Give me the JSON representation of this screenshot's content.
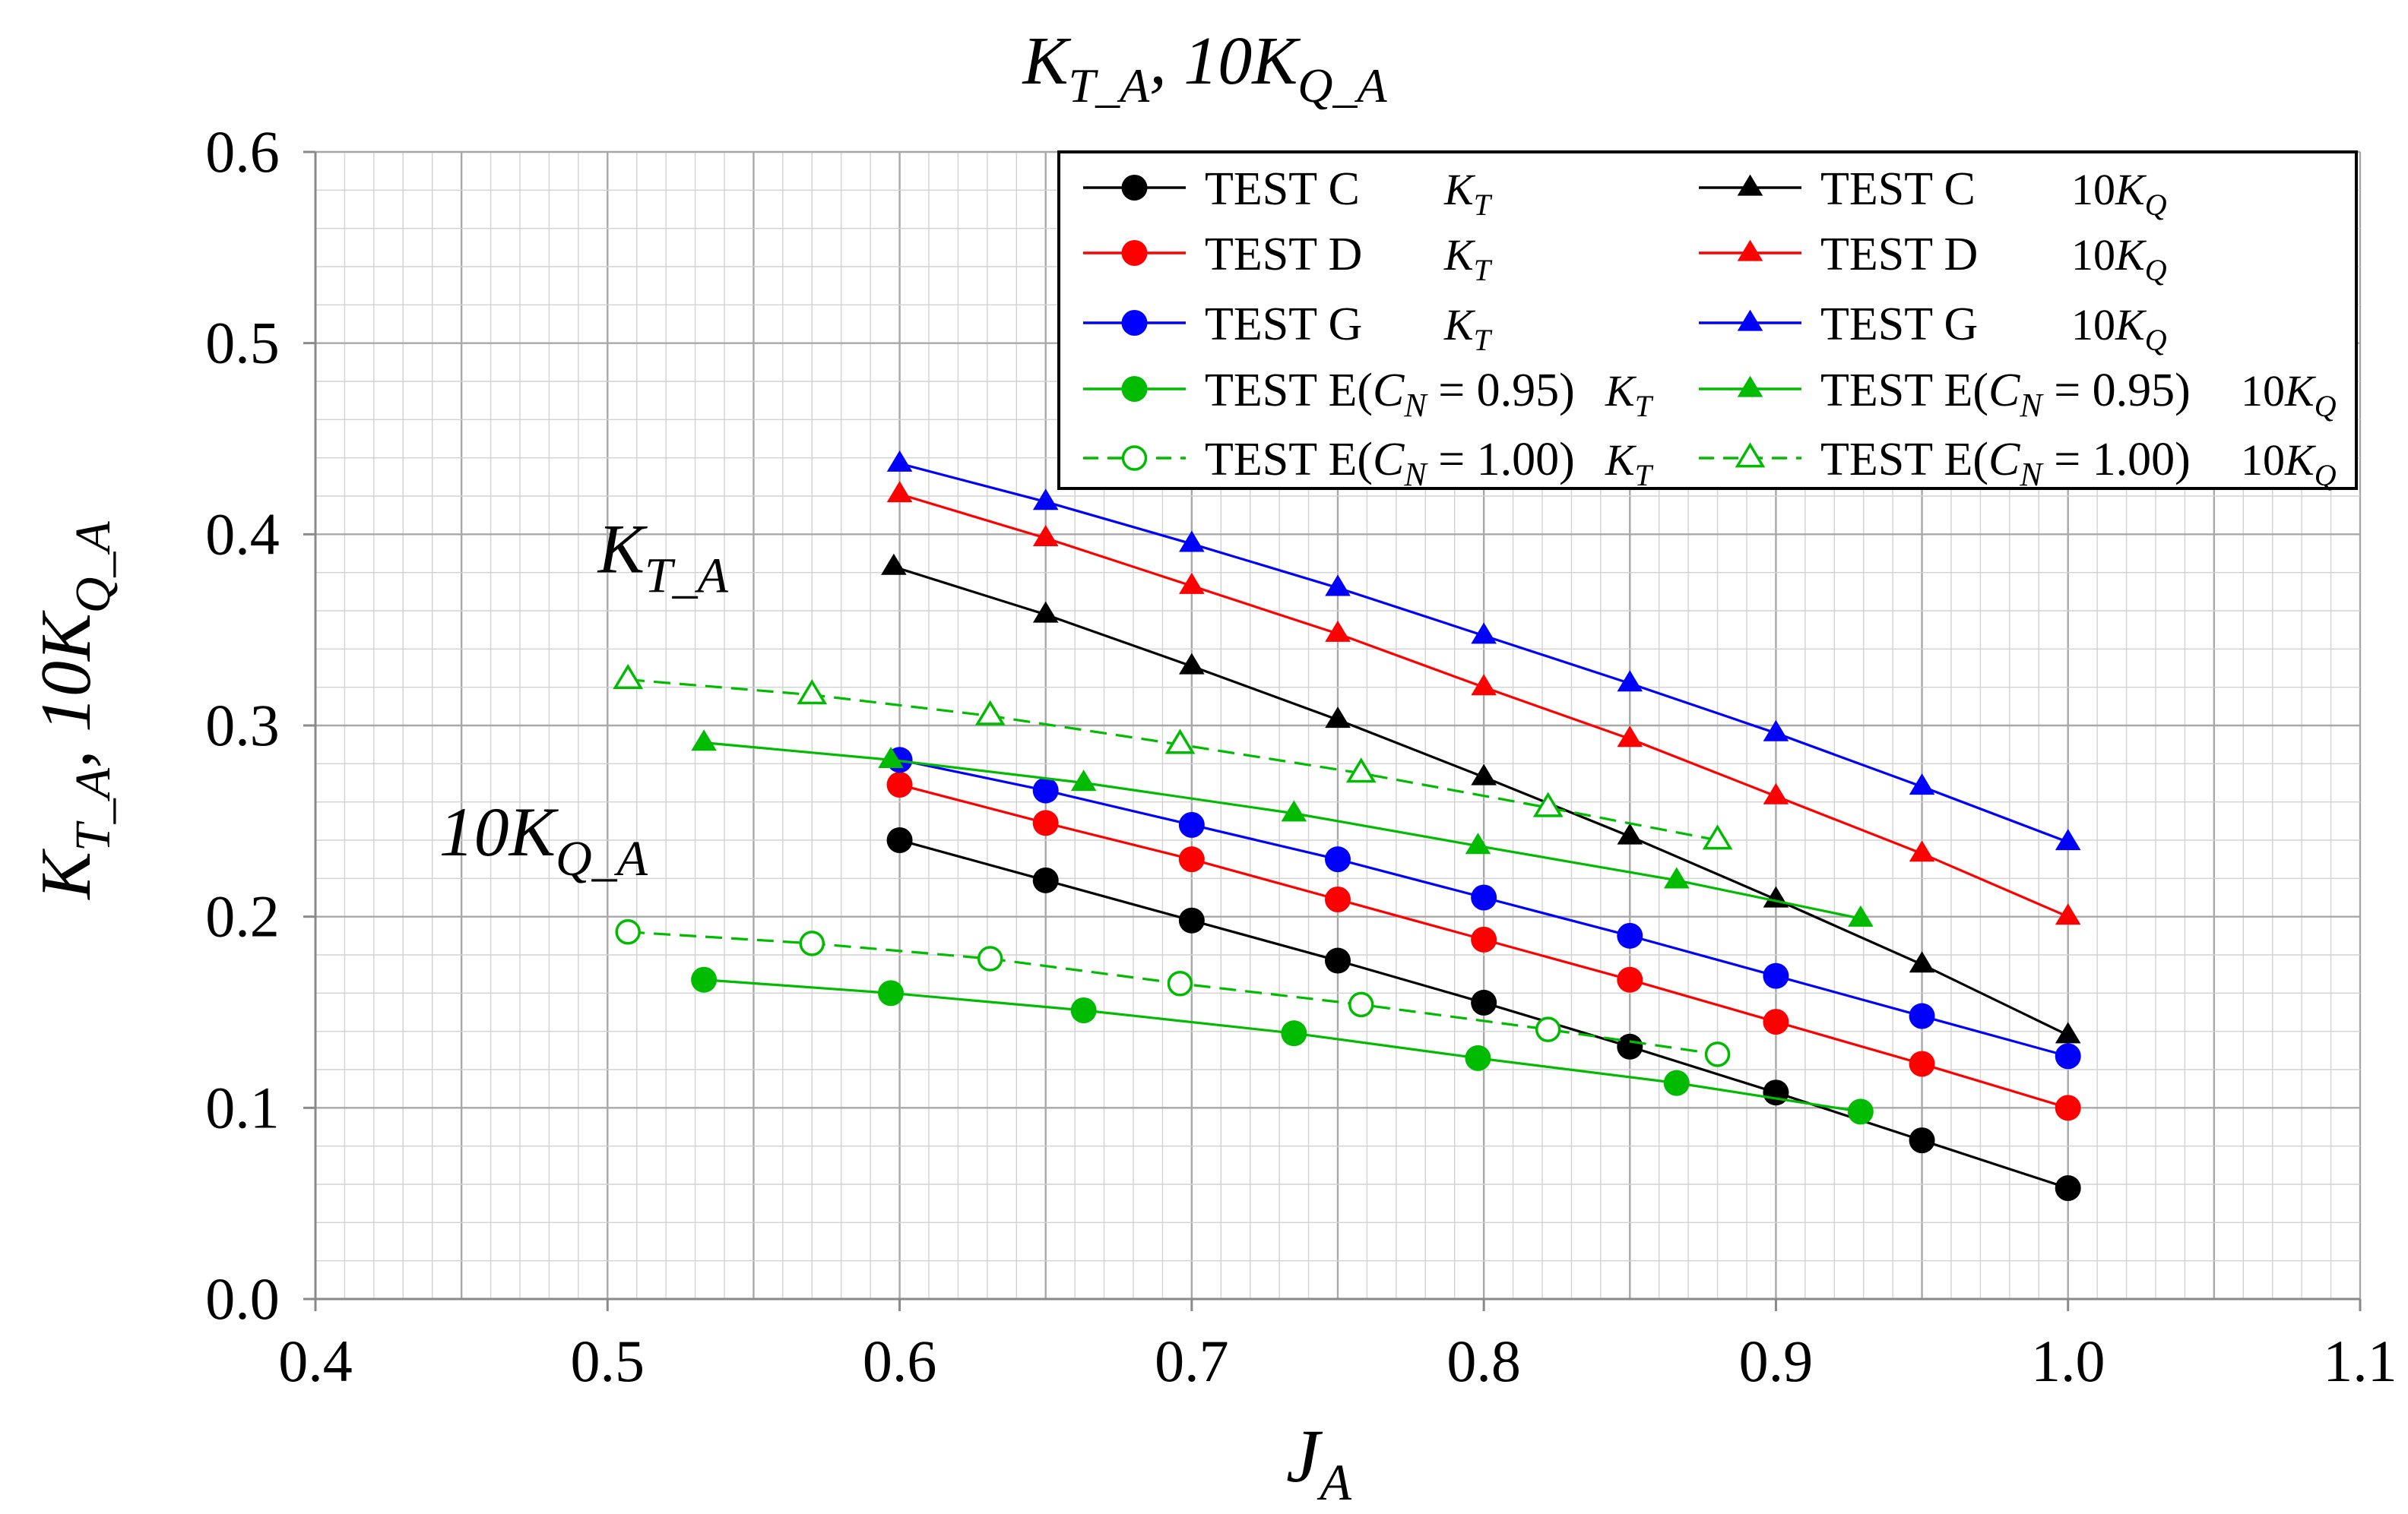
{
  "chart_data": {
    "type": "line",
    "title": {
      "main": "K",
      "sub1": "T_A",
      "sep": ", 10K",
      "sub2": "Q_A"
    },
    "xlabel": {
      "main": "J",
      "sub": "A"
    },
    "ylabel": {
      "main": "K",
      "sub1": "T_A",
      "sep": ", 10K",
      "sub2": "Q_A"
    },
    "xlim": [
      0.4,
      1.1
    ],
    "ylim": [
      0.0,
      0.6
    ],
    "grid": true,
    "xticks": [
      "0.4",
      "0.5",
      "0.6",
      "0.7",
      "0.8",
      "0.9",
      "1.0",
      "1.1"
    ],
    "yticks": [
      "0.0",
      "0.1",
      "0.2",
      "0.3",
      "0.4",
      "0.5",
      "0.6"
    ],
    "annotations": [
      {
        "id": "kt",
        "main": "K",
        "sub": "T_A",
        "x": 0.519,
        "y": 0.38
      },
      {
        "id": "kq",
        "main": "10K",
        "sub": "Q_A",
        "x": 0.478,
        "y": 0.232
      }
    ],
    "legend_position": "top-right",
    "series": [
      {
        "name": "TEST C",
        "coef": "K",
        "coef_sub": "T",
        "color": "#000000",
        "marker": "circle",
        "filled": true,
        "dashed": false,
        "x": [
          0.6,
          0.65,
          0.7,
          0.75,
          0.8,
          0.85,
          0.9,
          0.95,
          1.0
        ],
        "y": [
          0.24,
          0.219,
          0.198,
          0.177,
          0.155,
          0.132,
          0.108,
          0.083,
          0.058
        ]
      },
      {
        "name": "TEST D",
        "coef": "K",
        "coef_sub": "T",
        "color": "#ff0000",
        "marker": "circle",
        "filled": true,
        "dashed": false,
        "x": [
          0.6,
          0.65,
          0.7,
          0.75,
          0.8,
          0.85,
          0.9,
          0.95,
          1.0
        ],
        "y": [
          0.269,
          0.249,
          0.23,
          0.209,
          0.188,
          0.167,
          0.145,
          0.123,
          0.1
        ]
      },
      {
        "name": "TEST G",
        "coef": "K",
        "coef_sub": "T",
        "color": "#0000ff",
        "marker": "circle",
        "filled": true,
        "dashed": false,
        "x": [
          0.6,
          0.65,
          0.7,
          0.75,
          0.8,
          0.85,
          0.9,
          0.95,
          1.0
        ],
        "y": [
          0.282,
          0.266,
          0.248,
          0.23,
          0.21,
          0.19,
          0.169,
          0.148,
          0.127
        ]
      },
      {
        "name": "TEST E(C_N = 0.95)",
        "name_main": "TEST E(",
        "cn": "C",
        "cn_sub": "N",
        "cn_val": " = 0.95)",
        "coef": "K",
        "coef_sub": "T",
        "color": "#00bb00",
        "marker": "circle",
        "filled": true,
        "dashed": false,
        "x": [
          0.533,
          0.597,
          0.663,
          0.735,
          0.798,
          0.866,
          0.929
        ],
        "y": [
          0.167,
          0.16,
          0.151,
          0.139,
          0.126,
          0.113,
          0.098
        ]
      },
      {
        "name": "TEST E(C_N = 1.00)",
        "name_main": "TEST E(",
        "cn": "C",
        "cn_sub": "N",
        "cn_val": " = 1.00)",
        "coef": "K",
        "coef_sub": "T",
        "color": "#00bb00",
        "marker": "circle",
        "filled": false,
        "dashed": true,
        "x": [
          0.507,
          0.57,
          0.631,
          0.696,
          0.758,
          0.822,
          0.88
        ],
        "y": [
          0.192,
          0.186,
          0.178,
          0.165,
          0.154,
          0.141,
          0.128
        ]
      },
      {
        "name": "TEST C",
        "coef": "10K",
        "coef_sub": "Q",
        "color": "#000000",
        "marker": "triangle",
        "filled": true,
        "dashed": false,
        "x": [
          0.598,
          0.65,
          0.7,
          0.75,
          0.8,
          0.85,
          0.9,
          0.95,
          1.0
        ],
        "y": [
          0.383,
          0.358,
          0.331,
          0.303,
          0.273,
          0.242,
          0.209,
          0.175,
          0.138
        ]
      },
      {
        "name": "TEST D",
        "coef": "10K",
        "coef_sub": "Q",
        "color": "#ff0000",
        "marker": "triangle",
        "filled": true,
        "dashed": false,
        "x": [
          0.6,
          0.65,
          0.7,
          0.75,
          0.8,
          0.85,
          0.9,
          0.95,
          1.0
        ],
        "y": [
          0.421,
          0.398,
          0.373,
          0.348,
          0.32,
          0.293,
          0.263,
          0.233,
          0.2
        ]
      },
      {
        "name": "TEST G",
        "coef": "10K",
        "coef_sub": "Q",
        "color": "#0000ff",
        "marker": "triangle",
        "filled": true,
        "dashed": false,
        "x": [
          0.6,
          0.65,
          0.7,
          0.75,
          0.8,
          0.85,
          0.9,
          0.95,
          1.0
        ],
        "y": [
          0.437,
          0.417,
          0.395,
          0.372,
          0.347,
          0.322,
          0.296,
          0.268,
          0.239
        ]
      },
      {
        "name": "TEST E(C_N = 0.95)",
        "name_main": "TEST E(",
        "cn": "C",
        "cn_sub": "N",
        "cn_val": " = 0.95)",
        "coef": "10K",
        "coef_sub": "Q",
        "color": "#00bb00",
        "marker": "triangle",
        "filled": true,
        "dashed": false,
        "x": [
          0.533,
          0.597,
          0.663,
          0.735,
          0.798,
          0.866,
          0.929
        ],
        "y": [
          0.291,
          0.282,
          0.27,
          0.254,
          0.237,
          0.219,
          0.199
        ]
      },
      {
        "name": "TEST E(C_N = 1.00)",
        "name_main": "TEST E(",
        "cn": "C",
        "cn_sub": "N",
        "cn_val": " = 1.00)",
        "coef": "10K",
        "coef_sub": "Q",
        "color": "#00bb00",
        "marker": "triangle",
        "filled": false,
        "dashed": true,
        "x": [
          0.507,
          0.57,
          0.631,
          0.696,
          0.758,
          0.822,
          0.88
        ],
        "y": [
          0.324,
          0.316,
          0.305,
          0.29,
          0.275,
          0.257,
          0.24
        ]
      }
    ]
  }
}
